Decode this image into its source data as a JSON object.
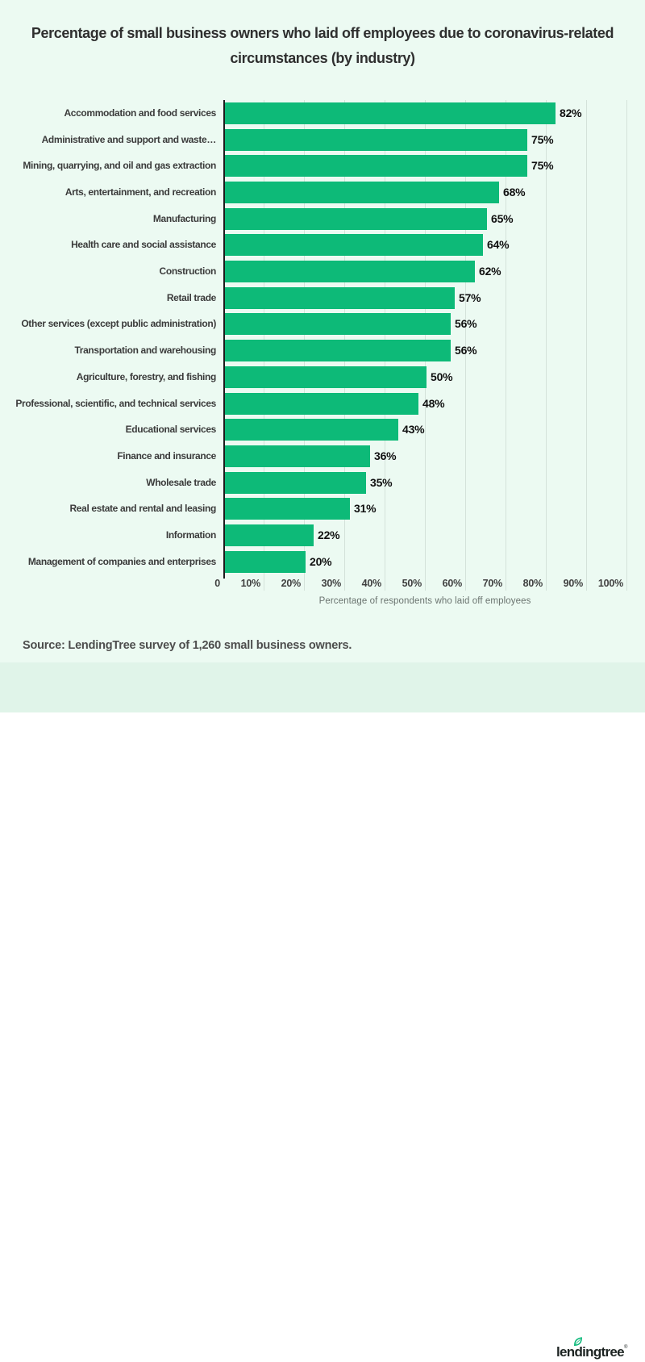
{
  "page": {
    "bg_color": "#ecfaf2",
    "footer_bg_color": "#e0f4e9"
  },
  "title": {
    "line1": "Percentage of small business owners who laid off employees due to coronavirus-related",
    "line2": "circumstances (by industry)"
  },
  "chart_data": {
    "type": "bar",
    "orientation": "horizontal",
    "title": "Percentage of small business owners who laid off employees due to coronavirus-related circumstances (by industry)",
    "categories": [
      "Accommodation and food services",
      "Administrative and support and waste…",
      "Mining, quarrying, and oil and gas extraction",
      "Arts, entertainment, and recreation",
      "Manufacturing",
      "Health care and social assistance",
      "Construction",
      "Retail trade",
      "Other services (except public administration)",
      "Transportation and warehousing",
      "Agriculture, forestry, and fishing",
      "Professional, scientific, and technical services",
      "Educational services",
      "Finance and insurance",
      "Wholesale trade",
      "Real estate and rental and leasing",
      "Information",
      "Management of companies and enterprises"
    ],
    "values": [
      82,
      75,
      75,
      68,
      65,
      64,
      62,
      57,
      56,
      56,
      50,
      48,
      43,
      36,
      35,
      31,
      22,
      20
    ],
    "value_labels": [
      "82%",
      "75%",
      "75%",
      "68%",
      "65%",
      "64%",
      "62%",
      "57%",
      "56%",
      "56%",
      "50%",
      "48%",
      "43%",
      "36%",
      "35%",
      "31%",
      "22%",
      "20%"
    ],
    "xlabel": "Percentage of respondents who laid off employees",
    "x_ticks": [
      "0",
      "10%",
      "20%",
      "30%",
      "40%",
      "50%",
      "60%",
      "70%",
      "80%",
      "90%",
      "100%"
    ],
    "xlim": [
      0,
      100
    ],
    "grid": true,
    "legend": "none",
    "bar_color": "#0dba78",
    "gridline_color": "#d4e2da",
    "axis_line_color": "#1c1c1c"
  },
  "source": {
    "text": "Source: LendingTree survey of 1,260 small business owners."
  },
  "logo": {
    "text": "lendingtree",
    "mark": "®",
    "leaf_color": "#0db97a"
  }
}
